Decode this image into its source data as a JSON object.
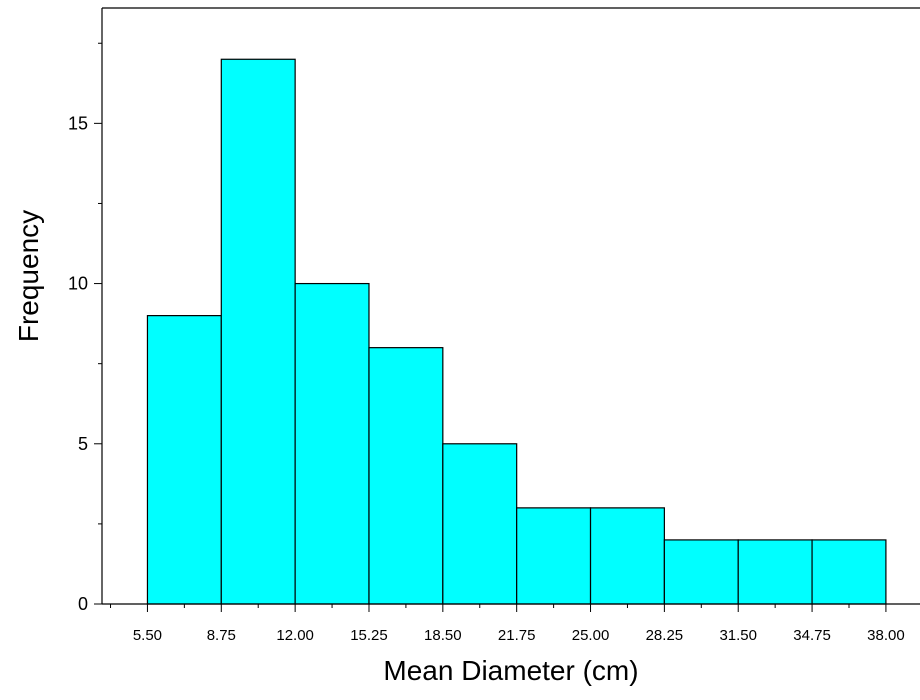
{
  "chart_data": {
    "type": "bar",
    "subtype": "histogram",
    "title": "",
    "xlabel": "Mean Diameter (cm)",
    "ylabel": "Frequency",
    "bin_edges": [
      5.5,
      8.75,
      12.0,
      15.25,
      18.5,
      21.75,
      25.0,
      28.25,
      31.5,
      34.75,
      38.0
    ],
    "x_tick_labels": [
      "5.50",
      "8.75",
      "12.00",
      "15.25",
      "18.50",
      "21.75",
      "25.00",
      "28.25",
      "31.50",
      "34.75",
      "38.00"
    ],
    "values": [
      9,
      17,
      10,
      8,
      5,
      3,
      3,
      2,
      2,
      2
    ],
    "y_ticks": [
      0,
      5,
      10,
      15
    ],
    "y_tick_labels": [
      "0",
      "5",
      "10",
      "15"
    ],
    "xlim": [
      3.5,
      39.5
    ],
    "ylim": [
      0,
      18.6
    ],
    "grid": false,
    "legend": "none",
    "colors": {
      "bar_fill": "#00FFFF",
      "bar_stroke": "#000000",
      "axis": "#000000"
    }
  }
}
